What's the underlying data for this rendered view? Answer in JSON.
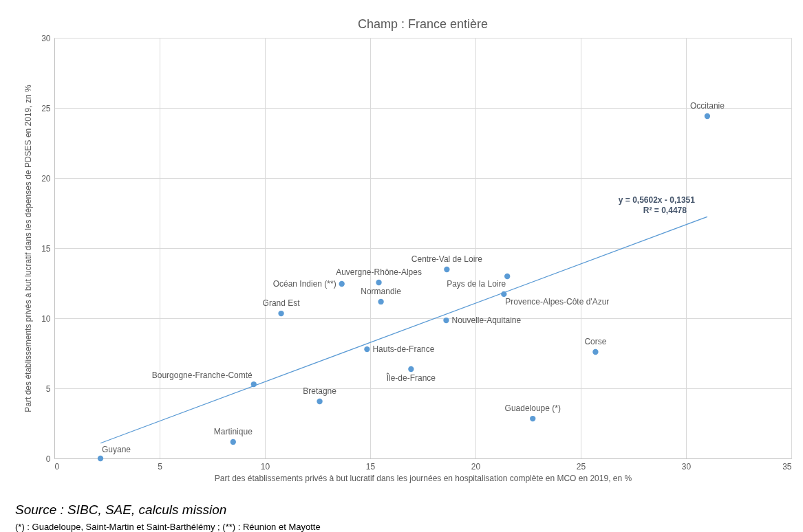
{
  "chart_data": {
    "type": "scatter",
    "title": "Champ : France entière",
    "xlabel": "Part des établissements privés à but lucratif dans les journées en hospitalisation complète en MCO en  2019, en %",
    "ylabel": "Part des établissements privés à but lucratif dans les dépenses de PDSES en 2019, zn %",
    "xlim": [
      0,
      35
    ],
    "xticks": [
      0,
      5,
      10,
      15,
      20,
      25,
      30,
      35
    ],
    "ylim": [
      0,
      30
    ],
    "yticks": [
      0,
      5,
      10,
      15,
      20,
      25,
      30
    ],
    "grid": true,
    "marker": "circle",
    "series": [
      {
        "name": "Guyane",
        "color": "#5b9bd5",
        "x": [
          2.19
        ],
        "values": [
          0
        ]
      },
      {
        "name": "Martinique",
        "color": "#5b9bd5",
        "x": [
          8.49
        ],
        "values": [
          1.18
        ]
      },
      {
        "name": "Bourgogne-Franche-Comté",
        "color": "#5b9bd5",
        "x": [
          9.47
        ],
        "values": [
          5.29
        ]
      },
      {
        "name": "Grand Est",
        "color": "#5b9bd5",
        "x": [
          10.77
        ],
        "values": [
          10.34
        ]
      },
      {
        "name": "Bretagne",
        "color": "#5b9bd5",
        "x": [
          12.6
        ],
        "values": [
          4.07
        ]
      },
      {
        "name": "Océan Indien (**)",
        "color": "#5b9bd5",
        "x": [
          13.65
        ],
        "values": [
          12.45
        ]
      },
      {
        "name": "Hauts-de-France",
        "color": "#5b9bd5",
        "x": [
          14.85
        ],
        "values": [
          7.79
        ]
      },
      {
        "name": "Auvergne-Rhône-Alpes",
        "color": "#5b9bd5",
        "x": [
          15.41
        ],
        "values": [
          12.55
        ]
      },
      {
        "name": "Normandie",
        "color": "#5b9bd5",
        "x": [
          15.51
        ],
        "values": [
          11.18
        ]
      },
      {
        "name": "Île-de-France",
        "color": "#5b9bd5",
        "x": [
          16.94
        ],
        "values": [
          6.37
        ]
      },
      {
        "name": "Nouvelle-Aquitaine",
        "color": "#5b9bd5",
        "x": [
          18.61
        ],
        "values": [
          9.85
        ]
      },
      {
        "name": "Centre-Val de Loire",
        "color": "#5b9bd5",
        "x": [
          18.64
        ],
        "values": [
          13.48
        ]
      },
      {
        "name": "Provence-Alpes-Côte d'Azur",
        "color": "#5b9bd5",
        "x": [
          21.35
        ],
        "values": [
          11.72
        ]
      },
      {
        "name": "Pays de la Loire",
        "color": "#5b9bd5",
        "x": [
          21.51
        ],
        "values": [
          12.99
        ]
      },
      {
        "name": "Guadeloupe (*)",
        "color": "#5b9bd5",
        "x": [
          22.72
        ],
        "values": [
          2.84
        ]
      },
      {
        "name": "Corse",
        "color": "#5b9bd5",
        "x": [
          25.7
        ],
        "values": [
          7.6
        ]
      },
      {
        "name": "Occitanie",
        "color": "#5b9bd5",
        "x": [
          31.01
        ],
        "values": [
          24.41
        ]
      },
      {
        "type": "line",
        "marker": "none",
        "color": "#5b9bd5",
        "x": [
          2.19,
          31.01
        ],
        "values": [
          1.09,
          17.24
        ]
      }
    ],
    "annotations": [
      {
        "text": "y = 0,5602x - 0,1351",
        "x": 31.01,
        "y": 17.24
      },
      {
        "text": "R² = 0,4478",
        "x": 31.01,
        "y": 17.24
      },
      "Source : SIBC, SAE, calculs mission",
      "(*) : Guadeloupe, Saint-Martin et Saint-Barthélémy ; (**) : Réunion et Mayotte"
    ]
  }
}
